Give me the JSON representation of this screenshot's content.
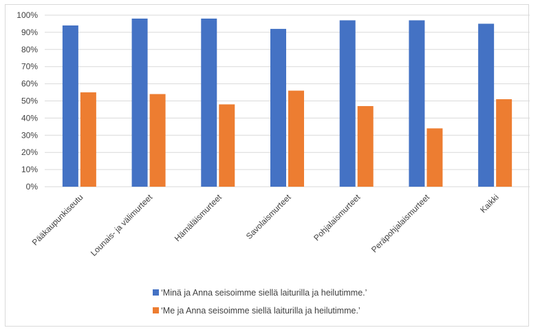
{
  "chart_data": {
    "type": "bar",
    "categories": [
      "Pääkaupunkiseutu",
      "Lounais- ja välimurteet",
      "Hämäläismurteet",
      "Savolaismurteet",
      "Pohjalaismurteet",
      "Peräpohjalaismurteet",
      "Kaikki"
    ],
    "series": [
      {
        "name": "‘Minä ja Anna seisoimme siellä laiturilla ja heilutimme.’",
        "color": "#4472c4",
        "values": [
          94,
          98,
          98,
          92,
          97,
          97,
          95
        ]
      },
      {
        "name": "‘Me ja Anna seisoimme siellä laiturilla ja heilutimme.’",
        "color": "#ed7d31",
        "values": [
          55,
          54,
          48,
          56,
          47,
          34,
          51
        ]
      }
    ],
    "yticks": [
      "0%",
      "10%",
      "20%",
      "30%",
      "40%",
      "50%",
      "60%",
      "70%",
      "80%",
      "90%",
      "100%"
    ],
    "ylim": [
      0,
      100
    ],
    "grid": true,
    "legend_position": "bottom"
  }
}
